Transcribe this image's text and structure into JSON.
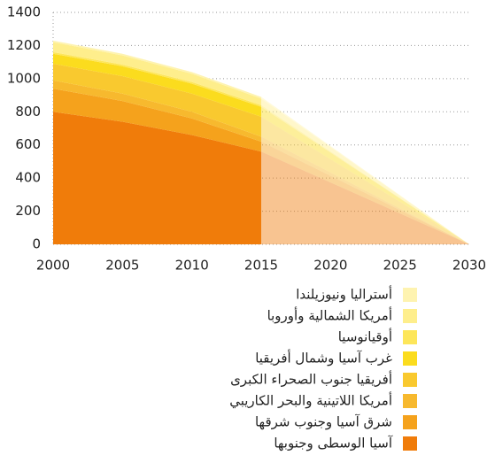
{
  "chart_data": {
    "type": "stacked_area",
    "x": [
      2000,
      2005,
      2010,
      2015,
      2030
    ],
    "xlim": [
      2000,
      2030
    ],
    "xticks": [
      2000,
      2005,
      2010,
      2015,
      2020,
      2025,
      2030
    ],
    "ylim": [
      0,
      1400
    ],
    "yticks": [
      0,
      200,
      400,
      600,
      800,
      1000,
      1200,
      1400
    ],
    "grid": true,
    "series": [
      {
        "name": "آسيا الوسطى وجنوبها",
        "color": "#f07c0a",
        "values": [
          800,
          740,
          660,
          560,
          0
        ]
      },
      {
        "name": "شرق آسيا وجنوب شرقها",
        "color": "#f5a21c",
        "values": [
          140,
          125,
          100,
          60,
          0
        ]
      },
      {
        "name": "أمريكا اللاتينية والبحر الكاريبي",
        "color": "#f7b92e",
        "values": [
          50,
          45,
          40,
          30,
          0
        ]
      },
      {
        "name": "أفريقيا جنوب الصحراء الكبرى",
        "color": "#f9c92f",
        "values": [
          100,
          105,
          110,
          120,
          0
        ]
      },
      {
        "name": "غرب آسيا وشمال أفريقيا",
        "color": "#fbdc1e",
        "values": [
          60,
          60,
          60,
          60,
          0
        ]
      },
      {
        "name": "أوقيانوسيا",
        "color": "#fde65a",
        "values": [
          10,
          10,
          10,
          10,
          0
        ]
      },
      {
        "name": "أمريكا الشمالية وأوروبا",
        "color": "#feee8c",
        "values": [
          60,
          55,
          50,
          40,
          0
        ]
      },
      {
        "name": "أستراليا ونيوزيلندا",
        "color": "#fef3b0",
        "values": [
          10,
          10,
          10,
          10,
          0
        ]
      }
    ]
  }
}
